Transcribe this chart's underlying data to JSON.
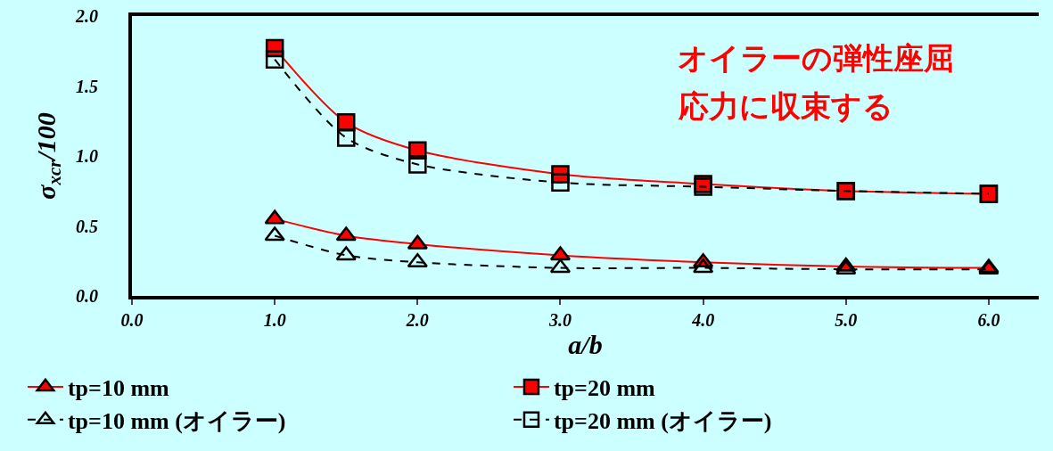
{
  "chart_data": {
    "type": "line",
    "xlabel": "a/b",
    "ylabel": "σ$_{xcr}$/100",
    "x": [
      1,
      1.5,
      2,
      3,
      4,
      5,
      6
    ],
    "series": [
      {
        "name": "tp=10 mm",
        "color": "#ff0000",
        "marker": "triangle",
        "line_style": "solid",
        "values": [
          0.55,
          0.43,
          0.37,
          0.29,
          0.24,
          0.21,
          0.2
        ]
      },
      {
        "name": "tp=20 mm",
        "color": "#ff0000",
        "marker": "square",
        "line_style": "solid",
        "values": [
          1.77,
          1.24,
          1.04,
          0.87,
          0.8,
          0.75,
          0.73
        ]
      },
      {
        "name": "tp=10 mm (オイラー)",
        "color": "#000000",
        "marker": "triangle",
        "line_style": "dashed",
        "values": [
          0.43,
          0.29,
          0.24,
          0.2,
          0.2,
          0.19,
          0.19
        ]
      },
      {
        "name": "tp=20 mm (オイラー)",
        "color": "#000000",
        "marker": "square",
        "line_style": "dashed",
        "values": [
          1.69,
          1.13,
          0.94,
          0.81,
          0.78,
          0.75,
          0.73
        ]
      }
    ],
    "xlim": [
      0,
      6.35
    ],
    "xticks": [
      {
        "value": 0,
        "label": "0.0"
      },
      {
        "value": 1,
        "label": "1.0"
      },
      {
        "value": 2,
        "label": "2.0"
      },
      {
        "value": 3,
        "label": "3.0"
      },
      {
        "value": 4,
        "label": "4.0"
      },
      {
        "value": 5,
        "label": "5.0"
      },
      {
        "value": 6,
        "label": "6.0"
      }
    ],
    "ylim": [
      0,
      2
    ],
    "yticks": [
      {
        "value": 0,
        "label": "0.0"
      },
      {
        "value": 0.5,
        "label": "0.5"
      },
      {
        "value": 1,
        "label": "1.0"
      },
      {
        "value": 1.5,
        "label": "1.5"
      },
      {
        "value": 2,
        "label": "2.0"
      }
    ],
    "grid": false,
    "legend": "bottom",
    "annotations": [
      "オイラーの弾性座屈",
      "応力に収束する"
    ]
  }
}
